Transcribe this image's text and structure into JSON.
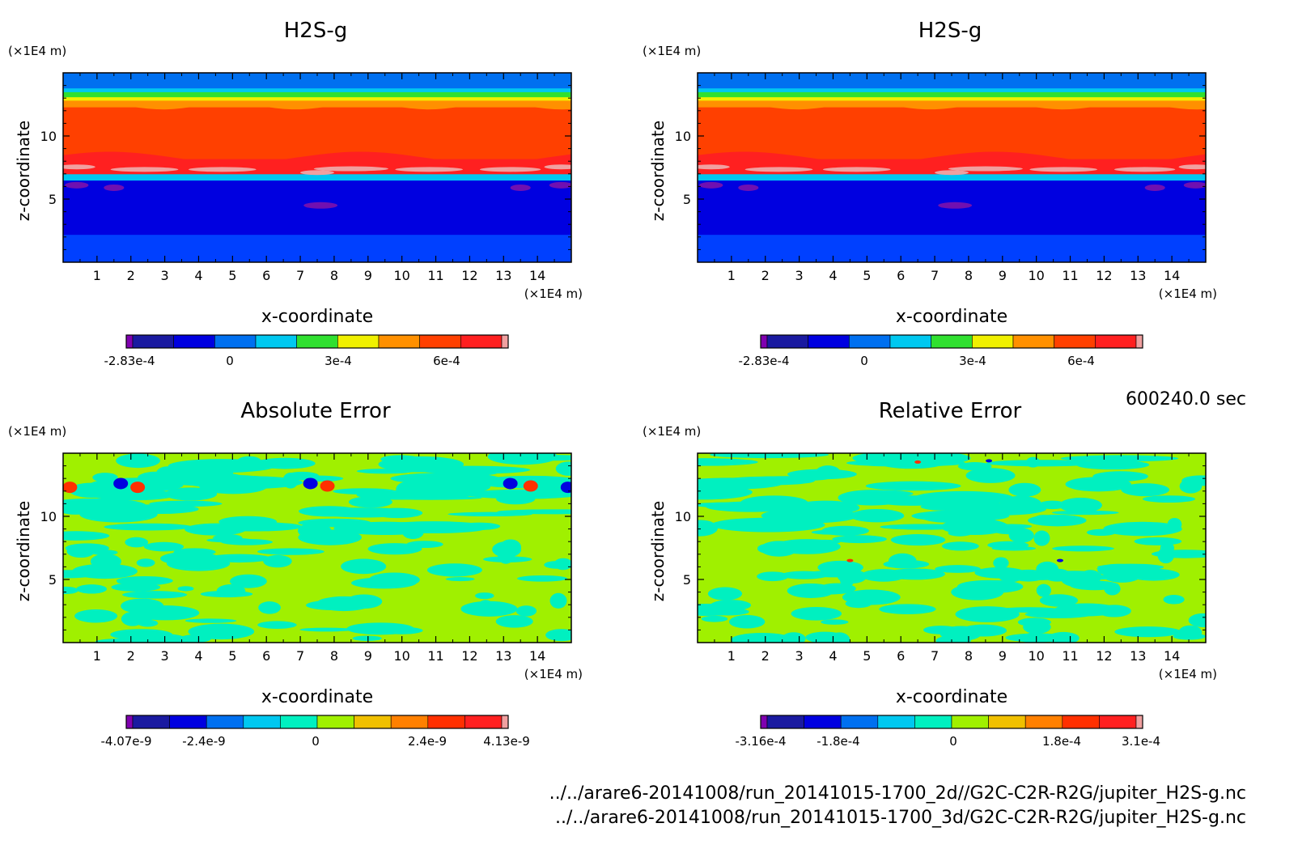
{
  "time_label": "600240.0 sec",
  "source_files": [
    "../../arare6-20141008/run_20141015-1700_2d//G2C-C2R-R2G/jupiter_H2S-g.nc",
    "../../arare6-20141008/run_20141015-1700_3d/G2C-C2R-R2G/jupiter_H2S-g.nc"
  ],
  "chart_data": [
    {
      "type": "heatmap",
      "title": "H2S-g",
      "xlabel": "x-coordinate",
      "ylabel": "z-coordinate",
      "x_unit": "(×1E4 m)",
      "y_unit": "(×1E4 m)",
      "xlim": [
        0,
        15
      ],
      "ylim": [
        0,
        15
      ],
      "x_ticks": [
        "1",
        "2",
        "3",
        "4",
        "5",
        "6",
        "7",
        "8",
        "9",
        "10",
        "11",
        "12",
        "13",
        "14"
      ],
      "y_ticks": [
        "5",
        "10"
      ],
      "colorbar_ticks": [
        "-2.83e-4",
        "0",
        "3e-4",
        "6e-4"
      ],
      "colors": [
        "#8000b0",
        "#1a1aa0",
        "#0000e0",
        "#0070f0",
        "#00c8f0",
        "#30e030",
        "#f0f000",
        "#ff9000",
        "#ff4000",
        "#ff2020",
        "#f0a0a0"
      ],
      "bands": [
        {
          "z": [
            0,
            2.2
          ],
          "color": "#0040ff"
        },
        {
          "z": [
            2.2,
            6.5
          ],
          "color": "#0000e0"
        },
        {
          "z": [
            6.5,
            7.0
          ],
          "color": "#00c8f0"
        },
        {
          "z": [
            7.0,
            8.2
          ],
          "color": "#ff2020"
        },
        {
          "z": [
            8.2,
            12.3
          ],
          "color": "#ff4000"
        },
        {
          "z": [
            12.3,
            12.8
          ],
          "color": "#ff9000"
        },
        {
          "z": [
            12.8,
            13.1
          ],
          "color": "#f0f000"
        },
        {
          "z": [
            13.1,
            13.5
          ],
          "color": "#30e030"
        },
        {
          "z": [
            13.5,
            13.8
          ],
          "color": "#00c8f0"
        },
        {
          "z": [
            13.8,
            15
          ],
          "color": "#0070f0"
        }
      ]
    },
    {
      "type": "heatmap",
      "title": "H2S-g",
      "xlabel": "x-coordinate",
      "ylabel": "z-coordinate",
      "x_unit": "(×1E4 m)",
      "y_unit": "(×1E4 m)",
      "xlim": [
        0,
        15
      ],
      "ylim": [
        0,
        15
      ],
      "x_ticks": [
        "1",
        "2",
        "3",
        "4",
        "5",
        "6",
        "7",
        "8",
        "9",
        "10",
        "11",
        "12",
        "13",
        "14"
      ],
      "y_ticks": [
        "5",
        "10"
      ],
      "colorbar_ticks": [
        "-2.83e-4",
        "0",
        "3e-4",
        "6e-4"
      ],
      "colors": [
        "#8000b0",
        "#1a1aa0",
        "#0000e0",
        "#0070f0",
        "#00c8f0",
        "#30e030",
        "#f0f000",
        "#ff9000",
        "#ff4000",
        "#ff2020",
        "#f0a0a0"
      ],
      "bands": [
        {
          "z": [
            0,
            2.2
          ],
          "color": "#0040ff"
        },
        {
          "z": [
            2.2,
            6.5
          ],
          "color": "#0000e0"
        },
        {
          "z": [
            6.5,
            7.0
          ],
          "color": "#00c8f0"
        },
        {
          "z": [
            7.0,
            8.2
          ],
          "color": "#ff2020"
        },
        {
          "z": [
            8.2,
            12.3
          ],
          "color": "#ff4000"
        },
        {
          "z": [
            12.3,
            12.8
          ],
          "color": "#ff9000"
        },
        {
          "z": [
            12.8,
            13.1
          ],
          "color": "#f0f000"
        },
        {
          "z": [
            13.1,
            13.5
          ],
          "color": "#30e030"
        },
        {
          "z": [
            13.5,
            13.8
          ],
          "color": "#00c8f0"
        },
        {
          "z": [
            13.8,
            15
          ],
          "color": "#0070f0"
        }
      ]
    },
    {
      "type": "heatmap",
      "title": "Absolute Error",
      "xlabel": "x-coordinate",
      "ylabel": "z-coordinate",
      "x_unit": "(×1E4 m)",
      "y_unit": "(×1E4 m)",
      "xlim": [
        0,
        15
      ],
      "ylim": [
        0,
        15
      ],
      "x_ticks": [
        "1",
        "2",
        "3",
        "4",
        "5",
        "6",
        "7",
        "8",
        "9",
        "10",
        "11",
        "12",
        "13",
        "14"
      ],
      "y_ticks": [
        "5",
        "10"
      ],
      "colorbar_ticks": [
        "-4.07e-9",
        "-2.4e-9",
        "0",
        "2.4e-9",
        "4.13e-9"
      ],
      "colors": [
        "#8000b0",
        "#1a1aa0",
        "#0000e0",
        "#0070f0",
        "#00c8f0",
        "#00f0c0",
        "#a0f000",
        "#f0c000",
        "#ff8000",
        "#ff3000",
        "#ff2020",
        "#f0a0a0"
      ],
      "bands": [
        {
          "z": [
            0,
            15
          ],
          "color": "#a0f000"
        }
      ]
    },
    {
      "type": "heatmap",
      "title": "Relative Error",
      "xlabel": "x-coordinate",
      "ylabel": "z-coordinate",
      "x_unit": "(×1E4 m)",
      "y_unit": "(×1E4 m)",
      "xlim": [
        0,
        15
      ],
      "ylim": [
        0,
        15
      ],
      "x_ticks": [
        "1",
        "2",
        "3",
        "4",
        "5",
        "6",
        "7",
        "8",
        "9",
        "10",
        "11",
        "12",
        "13",
        "14"
      ],
      "y_ticks": [
        "5",
        "10"
      ],
      "colorbar_ticks": [
        "-3.16e-4",
        "-1.8e-4",
        "0",
        "1.8e-4",
        "3.1e-4"
      ],
      "colors": [
        "#8000b0",
        "#1a1aa0",
        "#0000e0",
        "#0070f0",
        "#00c8f0",
        "#00f0c0",
        "#a0f000",
        "#f0c000",
        "#ff8000",
        "#ff3000",
        "#ff2020",
        "#f0a0a0"
      ],
      "bands": [
        {
          "z": [
            0,
            15
          ],
          "color": "#a0f000"
        }
      ]
    }
  ]
}
